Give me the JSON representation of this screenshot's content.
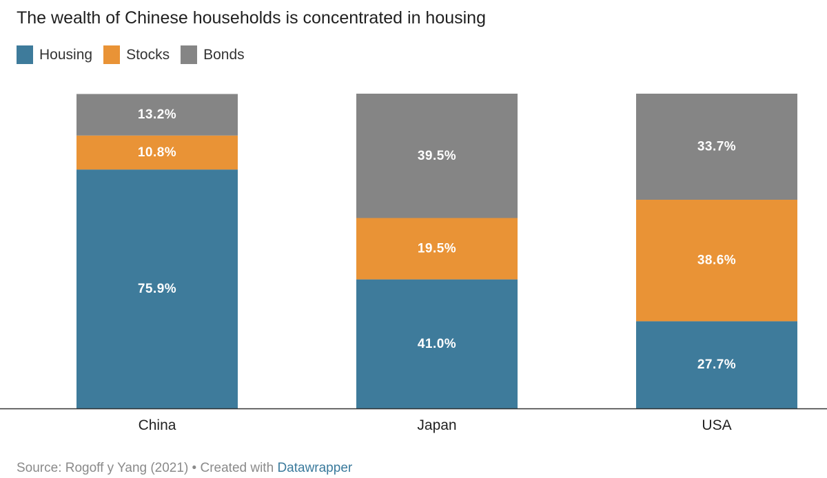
{
  "chart_data": {
    "type": "bar",
    "stacked": true,
    "normalized": true,
    "title": "The wealth of Chinese households is concentrated in housing",
    "categories": [
      "China",
      "Japan",
      "USA"
    ],
    "series": [
      {
        "name": "Housing",
        "color": "#3e7b9b",
        "values": [
          75.9,
          41.0,
          27.7
        ],
        "labels": [
          "75.9%",
          "41.0%",
          "27.7%"
        ]
      },
      {
        "name": "Stocks",
        "color": "#e99336",
        "values": [
          10.8,
          19.5,
          38.6
        ],
        "labels": [
          "10.8%",
          "19.5%",
          "38.6%"
        ]
      },
      {
        "name": "Bonds",
        "color": "#858585",
        "values": [
          13.2,
          39.5,
          33.7
        ],
        "labels": [
          "13.2%",
          "39.5%",
          "33.7%"
        ]
      }
    ],
    "ylim": [
      0,
      100
    ],
    "legend_position": "top-left",
    "grid": false
  },
  "footer": {
    "source_text": "Source: Rogoff y Yang (2021) • Created with ",
    "tool_name": "Datawrapper"
  }
}
